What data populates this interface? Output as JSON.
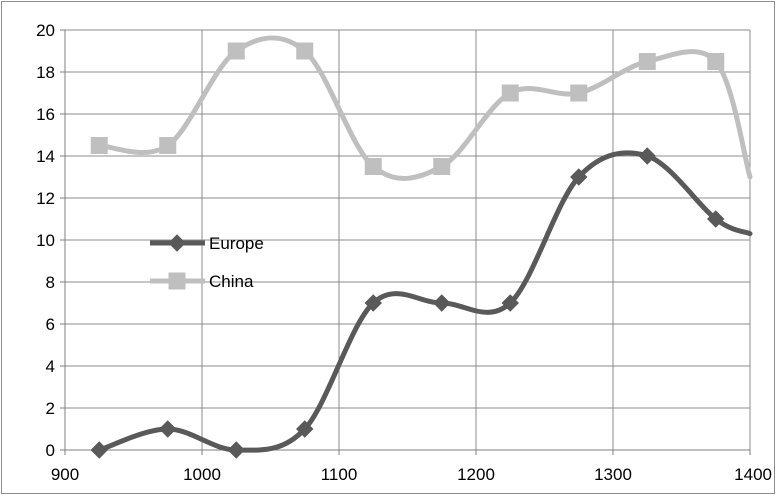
{
  "chart_data": {
    "type": "line",
    "smooth": true,
    "title": "",
    "xlabel": "",
    "ylabel": "",
    "xlim": [
      900,
      1400
    ],
    "ylim": [
      0,
      20
    ],
    "x_ticks": [
      "900",
      "1000",
      "1100",
      "1200",
      "1300",
      "1400"
    ],
    "y_ticks": [
      "0",
      "2",
      "4",
      "6",
      "8",
      "10",
      "12",
      "14",
      "16",
      "18",
      "20"
    ],
    "grid": true,
    "legend": "inside-left",
    "x": [
      925,
      975,
      1025,
      1075,
      1125,
      1175,
      1225,
      1275,
      1325,
      1375
    ],
    "series": [
      {
        "name": "Europe",
        "color": "#595959",
        "marker": "diamond",
        "values": [
          0,
          1,
          0,
          1,
          7,
          7,
          7,
          13,
          14,
          11
        ],
        "line_end": {
          "x": 1400,
          "y": 10.3
        }
      },
      {
        "name": "China",
        "color": "#BFBFBF",
        "marker": "square",
        "values": [
          14.5,
          14.5,
          19,
          19,
          13.5,
          13.5,
          17,
          17,
          18.5,
          18.5
        ],
        "line_end": {
          "x": 1400,
          "y": 13
        }
      }
    ]
  }
}
